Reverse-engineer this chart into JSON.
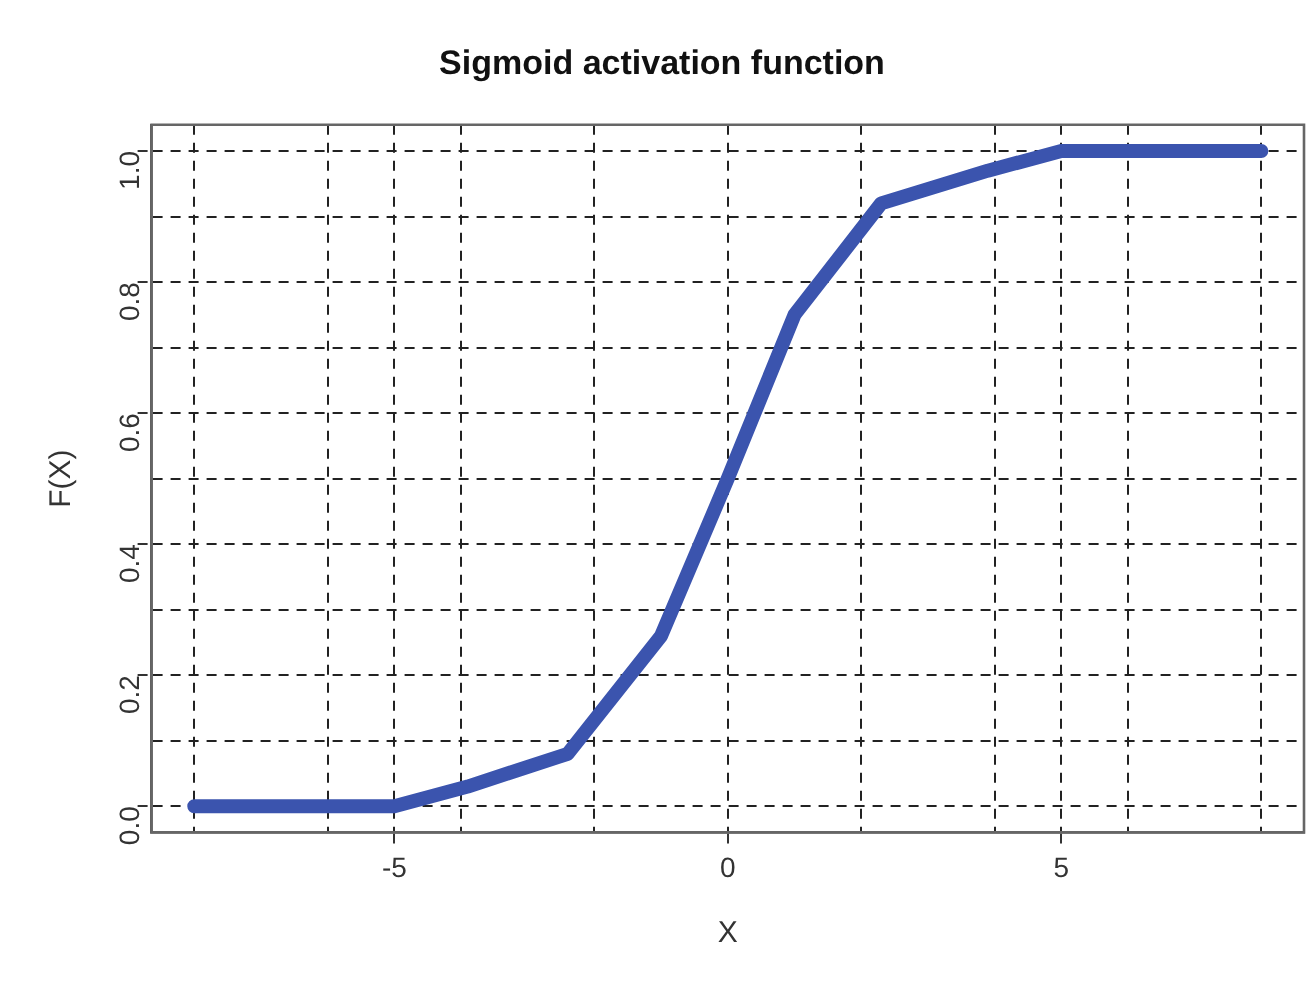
{
  "chart_data": {
    "type": "line",
    "title": "Sigmoid activation function",
    "xlabel": "X",
    "ylabel": "F(X)",
    "series": [
      {
        "color": "#3b54ae",
        "x": [
          -8,
          -5,
          -3.9,
          -2.4,
          -1,
          0,
          1,
          2.3,
          3.9,
          5,
          8
        ],
        "values": [
          0,
          0,
          0.03,
          0.08,
          0.26,
          0.5,
          0.75,
          0.92,
          0.97,
          1,
          1
        ]
      }
    ],
    "xlim": [
      -8.64,
      8.64
    ],
    "ylim": [
      -0.04,
      1.04
    ],
    "xticks": [
      {
        "value": -8,
        "label": null
      },
      {
        "value": -6,
        "label": null
      },
      -5,
      {
        "value": -4,
        "label": null
      },
      {
        "value": -2,
        "label": null
      },
      0,
      {
        "value": 2,
        "label": null
      },
      {
        "value": 4,
        "label": null
      },
      5,
      {
        "value": 6,
        "label": null
      },
      {
        "value": 8,
        "label": null
      }
    ],
    "yticks": [
      {
        "value": 0,
        "label": "0.0"
      },
      {
        "value": 0.1,
        "label": null
      },
      {
        "value": 0.2,
        "label": "0.2"
      },
      {
        "value": 0.3,
        "label": null
      },
      {
        "value": 0.4,
        "label": "0.4"
      },
      {
        "value": 0.5,
        "label": null
      },
      {
        "value": 0.6,
        "label": "0.6"
      },
      {
        "value": 0.7,
        "label": null
      },
      {
        "value": 0.8,
        "label": "0.8"
      },
      {
        "value": 0.9,
        "label": null
      },
      {
        "value": 1,
        "label": "1.0"
      }
    ],
    "grid": true,
    "legend": false,
    "marker": "none",
    "line_style": "solid"
  }
}
